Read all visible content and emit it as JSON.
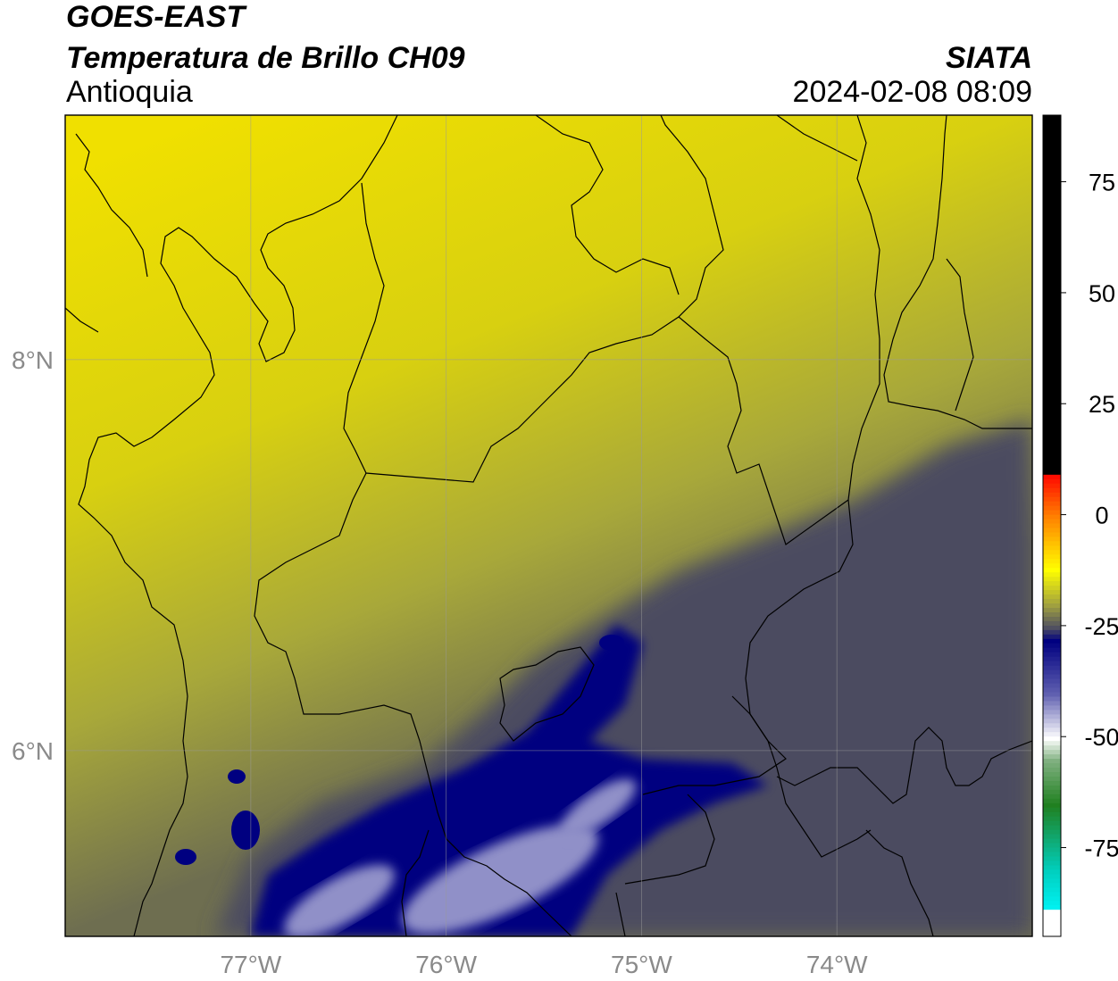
{
  "header": {
    "satellite": "GOES-EAST",
    "product": "Temperatura de Brillo CH09",
    "region": "Antioquia",
    "organization": "SIATA",
    "timestamp": "2024-02-08 08:09"
  },
  "map": {
    "lon_range": [
      -77.95,
      -73.0
    ],
    "lat_range": [
      5.05,
      9.25
    ],
    "lon_ticks": [
      {
        "value": -77,
        "label": "77°W"
      },
      {
        "value": -76,
        "label": "76°W"
      },
      {
        "value": -75,
        "label": "75°W"
      },
      {
        "value": -74,
        "label": "74°W"
      }
    ],
    "lat_ticks": [
      {
        "value": 8,
        "label": "8°N"
      },
      {
        "value": 6,
        "label": "6°N"
      }
    ],
    "grid": true,
    "field_colors": {
      "warm_yellow": "#f0e000",
      "olive": "#a8a83a",
      "grey_olive": "#6e6e50",
      "slate": "#4c4c60",
      "navy": "#000080",
      "light_blue": "#9090c8"
    }
  },
  "colorbar": {
    "range": [
      -95,
      90
    ],
    "tick_labels": [
      {
        "value": 75,
        "label": "75"
      },
      {
        "value": 50,
        "label": "50"
      },
      {
        "value": 25,
        "label": "25"
      },
      {
        "value": 0,
        "label": "0"
      },
      {
        "value": -25,
        "label": "-25"
      },
      {
        "value": -50,
        "label": "-50"
      },
      {
        "value": -75,
        "label": "-75"
      }
    ]
  }
}
